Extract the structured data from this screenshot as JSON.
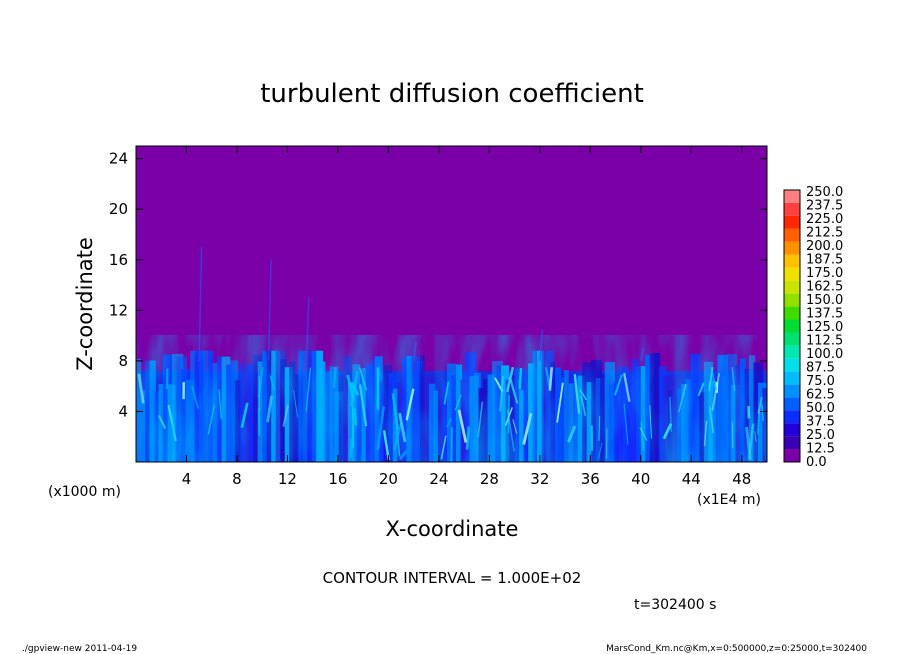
{
  "chart_data": {
    "type": "heatmap",
    "title": "turbulent diffusion coefficient",
    "xlabel": "X-coordinate",
    "ylabel": "Z-coordinate",
    "x_unit_left": "(x1000 m)",
    "x_unit_right": "(x1E4 m)",
    "xlim": [
      0,
      50
    ],
    "ylim": [
      0,
      25
    ],
    "x_ticks": [
      4,
      8,
      12,
      16,
      20,
      24,
      28,
      32,
      36,
      40,
      44,
      48
    ],
    "y_ticks": [
      4,
      8,
      12,
      16,
      20,
      24
    ],
    "contour_interval_text": "CONTOUR INTERVAL = 1.000E+02",
    "time_text": "t=302400 s",
    "colorbar": {
      "levels": [
        "0.0",
        "12.5",
        "25.0",
        "37.5",
        "50.0",
        "62.5",
        "75.0",
        "87.5",
        "100.0",
        "112.5",
        "125.0",
        "137.5",
        "150.0",
        "162.5",
        "175.0",
        "187.5",
        "200.0",
        "212.5",
        "225.0",
        "237.5",
        "250.0"
      ],
      "colors": [
        "#7a00a8",
        "#3a00b4",
        "#2400d8",
        "#0a2cff",
        "#0060ff",
        "#0090ff",
        "#00bcff",
        "#00e0e8",
        "#00e8b0",
        "#00e070",
        "#00dc30",
        "#40dc00",
        "#90e000",
        "#c8e400",
        "#f0e000",
        "#ffc000",
        "#ff9000",
        "#ff6000",
        "#ff2800",
        "#ff4040",
        "#ff8080"
      ]
    },
    "field": {
      "background_value": 0.0,
      "turbulent_layer_top_km": 8,
      "peak_plume_heights_km": [
        {
          "x": 5,
          "z": 17
        },
        {
          "x": 10.5,
          "z": 16
        },
        {
          "x": 13.5,
          "z": 13
        },
        {
          "x": 22,
          "z": 9.5
        },
        {
          "x": 32,
          "z": 10.5
        },
        {
          "x": 40,
          "z": 9
        }
      ]
    }
  },
  "footer": {
    "left": "./gpview-new  2011-04-19",
    "right": "MarsCond_Km.nc@Km,x=0:500000,z=0:25000,t=302400"
  }
}
